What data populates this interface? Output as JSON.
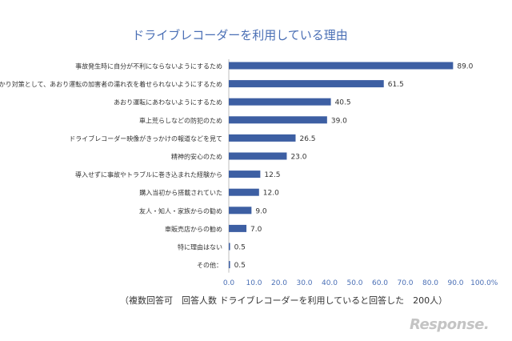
{
  "chart_data": {
    "type": "bar",
    "orientation": "horizontal",
    "title": "ドライブレコーダーを利用している理由",
    "categories": [
      "事故発生時に自分が不利にならないようにするため",
      "言いがかり対策として、あおり運転の加害者の濡れ衣を着せられないようにするため",
      "あおり運転にあわないようにするため",
      "車上荒らしなどの防犯のため",
      "ドライブレコーダー映像がきっかけの報道などを見て",
      "精神的安心のため",
      "導入せずに事故やトラブルに巻き込まれた経験から",
      "購入当初から搭載されていた",
      "友人・知人・家族からの勧め",
      "車販売店からの勧め",
      "特に理由はない",
      "その他："
    ],
    "values": [
      89.0,
      61.5,
      40.5,
      39.0,
      26.5,
      23.0,
      12.5,
      12.0,
      9.0,
      7.0,
      0.5,
      0.5
    ],
    "value_labels": [
      "89.0",
      "61.5",
      "40.5",
      "39.0",
      "26.5",
      "23.0",
      "12.5",
      "12.0",
      "9.0",
      "7.0",
      "0.5",
      "0.5"
    ],
    "xlim": [
      0,
      100
    ],
    "x_ticks": [
      "0.0",
      "10.0",
      "20.0",
      "30.0",
      "40.0",
      "50.0",
      "60.0",
      "70.0",
      "80.0",
      "90.0",
      "100.0"
    ],
    "x_unit": "%",
    "bar_color": "#3d5fa3",
    "grid": false
  },
  "footnote": "（複数回答可　回答人数 ドライブレコーダーを利用していると回答した　200人）",
  "logo_text": "Response."
}
